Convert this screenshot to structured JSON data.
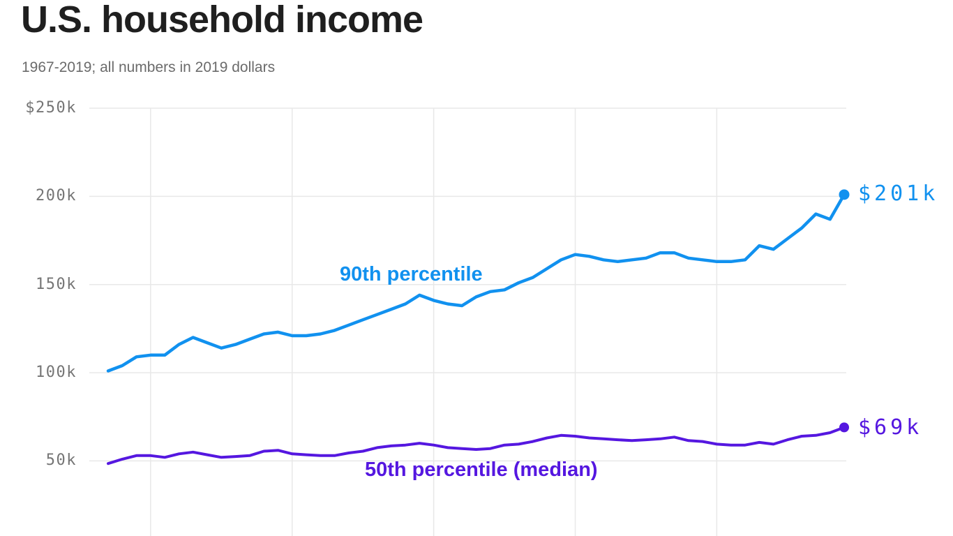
{
  "header": {
    "title": "U.S. household income",
    "subtitle": "1967-2019; all numbers in 2019 dollars"
  },
  "colors": {
    "blue": "#1191ef",
    "purple": "#5517e0",
    "grid": "#e8e8e8",
    "title_text": "#1f1f1f",
    "subtitle_text": "#6b6b6b",
    "axis_text": "#757575"
  },
  "chart_data": {
    "type": "line",
    "title": "U.S. household income",
    "subtitle": "1967-2019; all numbers in 2019 dollars",
    "units": "thousands of 2019 dollars",
    "x": [
      1967,
      1968,
      1969,
      1970,
      1971,
      1972,
      1973,
      1974,
      1975,
      1976,
      1977,
      1978,
      1979,
      1980,
      1981,
      1982,
      1983,
      1984,
      1985,
      1986,
      1987,
      1988,
      1989,
      1990,
      1991,
      1992,
      1993,
      1994,
      1995,
      1996,
      1997,
      1998,
      1999,
      2000,
      2001,
      2002,
      2003,
      2004,
      2005,
      2006,
      2007,
      2008,
      2009,
      2010,
      2011,
      2012,
      2013,
      2014,
      2015,
      2016,
      2017,
      2018,
      2019
    ],
    "series": [
      {
        "name": "90th percentile",
        "end_label": "$201k",
        "end_value": 201,
        "color_key": "blue",
        "values": [
          101,
          104,
          109,
          110,
          110,
          116,
          120,
          117,
          114,
          116,
          119,
          122,
          123,
          121,
          121,
          122,
          124,
          127,
          130,
          133,
          136,
          139,
          144,
          141,
          139,
          138,
          143,
          146,
          147,
          151,
          154,
          159,
          164,
          167,
          166,
          164,
          163,
          164,
          165,
          168,
          168,
          165,
          164,
          163,
          163,
          164,
          172,
          170,
          176,
          182,
          190,
          187,
          201
        ]
      },
      {
        "name": "50th percentile (median)",
        "end_label": "$69k",
        "end_value": 69,
        "color_key": "purple",
        "values": [
          48.5,
          51,
          53,
          53,
          52,
          54,
          55,
          53.5,
          52,
          52.5,
          53,
          55.5,
          56,
          54,
          53.5,
          53,
          53,
          54.5,
          55.5,
          57.5,
          58.5,
          59,
          60,
          59,
          57.5,
          57,
          56.5,
          57,
          59,
          59.5,
          61,
          63,
          64.5,
          64,
          63,
          62.5,
          62,
          61.5,
          62,
          62.5,
          63.5,
          61.5,
          61,
          59.5,
          59,
          59,
          60.5,
          59.5,
          62,
          64,
          64.5,
          66,
          69
        ]
      }
    ],
    "y_ticks": [
      {
        "value": 250,
        "label": "$250k"
      },
      {
        "value": 200,
        "label": "200k"
      },
      {
        "value": 150,
        "label": "150k"
      },
      {
        "value": 100,
        "label": "100k"
      },
      {
        "value": 50,
        "label": "50k"
      }
    ],
    "x_gridlines": [
      1970,
      1980,
      1990,
      2000,
      2010
    ],
    "x_tick_labels_visible": false,
    "ylim_top": 250,
    "grid": "on",
    "legend": "inline labels on lines"
  }
}
